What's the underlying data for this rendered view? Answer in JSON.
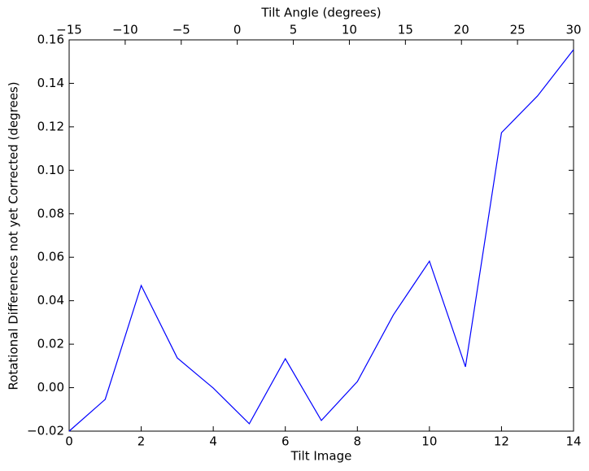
{
  "chart_data": {
    "type": "line",
    "x2label": "Tilt Angle (degrees)",
    "xlabel": "Tilt Image",
    "ylabel": "Rotational Differences not yet Corrected (degrees)",
    "x": [
      0,
      1,
      2,
      3,
      4,
      5,
      6,
      7,
      8,
      9,
      10,
      11,
      12,
      13,
      14
    ],
    "values": [
      -0.02,
      -0.0054,
      0.047,
      0.0137,
      -0.0002,
      -0.0166,
      0.0133,
      -0.0151,
      0.0028,
      0.0335,
      0.0582,
      0.0096,
      0.1173,
      0.1342,
      0.1555
    ],
    "color": "#0000ff",
    "xlim": [
      0,
      14
    ],
    "xticks": [
      0,
      2,
      4,
      6,
      8,
      10,
      12,
      14
    ],
    "x2lim": [
      -15,
      30
    ],
    "x2ticks": [
      {
        "value": -15,
        "label": "−15"
      },
      {
        "value": -10,
        "label": "−10"
      },
      {
        "value": -5,
        "label": "−5"
      },
      0,
      5,
      10,
      15,
      20,
      25,
      30
    ],
    "ylim": [
      -0.02,
      0.16
    ],
    "yticks": [
      {
        "value": -0.02,
        "label": "−0.02"
      },
      {
        "value": 0,
        "label": "0.00"
      },
      0.02,
      0.04,
      0.06,
      0.08,
      {
        "value": 0.1,
        "label": "0.10"
      },
      0.12,
      0.14,
      0.16
    ]
  }
}
